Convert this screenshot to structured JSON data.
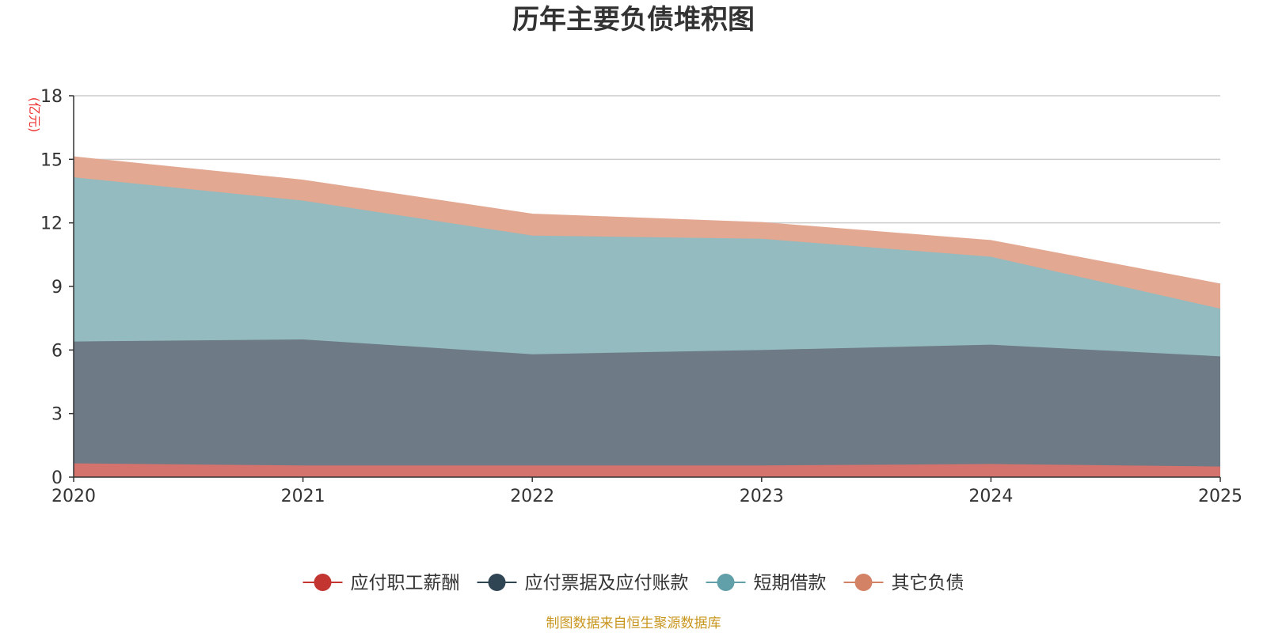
{
  "chart_data": {
    "type": "area",
    "stacked": true,
    "title": "历年主要负债堆积图",
    "unit_label": "(亿元)",
    "x": [
      "2020",
      "2021",
      "2022",
      "2023",
      "2024",
      "2025"
    ],
    "ylim": [
      0,
      18
    ],
    "yticks": [
      "0",
      "3",
      "6",
      "9",
      "12",
      "15",
      "18"
    ],
    "grid": true,
    "legend_position": "bottom-center",
    "series": [
      {
        "name": "应付职工薪酬",
        "values": [
          0.65,
          0.55,
          0.55,
          0.55,
          0.62,
          0.5
        ]
      },
      {
        "name": "应付票据及应付账款",
        "values": [
          5.75,
          5.95,
          5.25,
          5.45,
          5.63,
          5.2
        ]
      },
      {
        "name": "短期借款",
        "values": [
          7.75,
          6.55,
          5.6,
          5.25,
          4.15,
          2.25
        ]
      },
      {
        "name": "其它负债",
        "values": [
          0.95,
          0.95,
          1.0,
          0.75,
          0.75,
          1.15
        ]
      }
    ],
    "source": "制图数据来自恒生聚源数据库"
  },
  "colors": {
    "series_fill": [
      "#d4726e",
      "#6e7a85",
      "#93bbc0",
      "#e2a892"
    ],
    "series_marker": [
      "#c23531",
      "#2f4554",
      "#61a0a8",
      "#d48265"
    ],
    "unit": "#ee3333",
    "source": "#c8961e",
    "grid": "#cccccc",
    "axis": "#333333"
  }
}
